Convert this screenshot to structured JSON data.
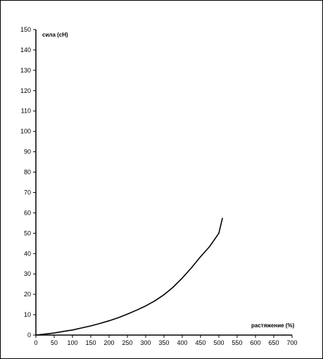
{
  "chart_data": {
    "type": "line",
    "title": "",
    "xlabel": "растяжение (%)",
    "ylabel": "сила (cH)",
    "xlim": [
      0,
      700
    ],
    "ylim": [
      0,
      150
    ],
    "x_ticks": [
      0,
      50,
      100,
      150,
      200,
      250,
      300,
      350,
      400,
      450,
      500,
      550,
      600,
      650,
      700
    ],
    "y_ticks": [
      0,
      10,
      20,
      30,
      40,
      50,
      60,
      70,
      80,
      90,
      100,
      110,
      120,
      130,
      140,
      150
    ],
    "grid": false,
    "legend": "none",
    "series": [
      {
        "color": "#000000",
        "x": [
          0,
          25,
          50,
          75,
          100,
          125,
          150,
          175,
          200,
          225,
          250,
          275,
          300,
          325,
          350,
          375,
          400,
          425,
          450,
          475,
          500,
          510
        ],
        "y": [
          0,
          0.5,
          1,
          1.8,
          2.5,
          3.5,
          4.5,
          5.7,
          7,
          8.5,
          10.3,
          12.2,
          14.3,
          16.8,
          19.8,
          23.5,
          28,
          33,
          38.5,
          43.5,
          50,
          57.5
        ]
      }
    ]
  }
}
